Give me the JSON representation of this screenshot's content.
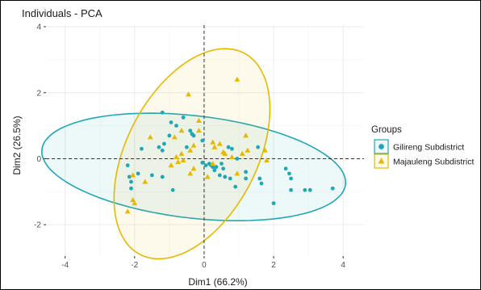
{
  "chart_data": {
    "type": "scatter",
    "title": "Individuals - PCA",
    "xlabel": "Dim1 (66.2%)",
    "ylabel": "Dim2 (26.5%)",
    "xlim": [
      -4.55,
      4.6
    ],
    "ylim": [
      -2.95,
      4.05
    ],
    "xticks": [
      -4,
      -2,
      0,
      2,
      4
    ],
    "yticks": [
      -2,
      0,
      2,
      4
    ],
    "grid": true,
    "reference_lines": {
      "x": 0,
      "y": 0
    },
    "legend_title": "Groups",
    "legend_position": "right",
    "series": [
      {
        "name": "Gilireng Subdistrict",
        "marker": "circle",
        "color": "#1fa7b8",
        "ellipse": {
          "cx": -0.3,
          "cy": -0.25,
          "rx": 4.4,
          "ry": 1.55,
          "angle_deg": -7
        },
        "points": [
          [
            -1.2,
            1.4
          ],
          [
            -0.95,
            1.1
          ],
          [
            -0.6,
            1.25
          ],
          [
            -0.4,
            0.85
          ],
          [
            -0.35,
            0.75
          ],
          [
            -0.3,
            0.7
          ],
          [
            -0.8,
            1.0
          ],
          [
            -1.0,
            0.7
          ],
          [
            -1.15,
            0.45
          ],
          [
            -1.8,
            0.3
          ],
          [
            -1.3,
            0.35
          ],
          [
            -1.2,
            0.25
          ],
          [
            -0.5,
            0.35
          ],
          [
            -0.05,
            0.55
          ],
          [
            0.7,
            0.35
          ],
          [
            0.8,
            0.3
          ],
          [
            1.55,
            0.35
          ],
          [
            0.95,
            0.0
          ],
          [
            -1.9,
            -0.45
          ],
          [
            -1.5,
            -0.5
          ],
          [
            -1.2,
            -0.55
          ],
          [
            -0.9,
            -0.95
          ],
          [
            -2.1,
            -0.9
          ],
          [
            -2.1,
            -0.7
          ],
          [
            -2.15,
            -0.55
          ],
          [
            -2.2,
            -0.2
          ],
          [
            0.05,
            -0.2
          ],
          [
            0.15,
            -0.15
          ],
          [
            0.2,
            -0.2
          ],
          [
            0.25,
            -0.25
          ],
          [
            0.35,
            -0.25
          ],
          [
            0.5,
            -0.15
          ],
          [
            0.55,
            -0.3
          ],
          [
            0.3,
            -0.35
          ],
          [
            0.45,
            -0.5
          ],
          [
            0.6,
            -0.55
          ],
          [
            0.75,
            -0.6
          ],
          [
            0.9,
            -0.85
          ],
          [
            1.2,
            -0.4
          ],
          [
            1.2,
            -0.6
          ],
          [
            1.6,
            -0.6
          ],
          [
            1.65,
            -0.75
          ],
          [
            2.35,
            -0.3
          ],
          [
            2.45,
            -0.45
          ],
          [
            2.5,
            -0.6
          ],
          [
            2.5,
            -0.95
          ],
          [
            2.9,
            -0.95
          ],
          [
            3.05,
            -0.95
          ],
          [
            3.7,
            -0.9
          ],
          [
            2.0,
            -1.35
          ],
          [
            -0.05,
            -0.12
          ]
        ]
      },
      {
        "name": "Majauleng Subdistrict",
        "marker": "triangle",
        "color": "#e7b800",
        "ellipse": {
          "cx": -0.35,
          "cy": 0.15,
          "rx": 1.9,
          "ry": 3.4,
          "angle_deg": -25
        },
        "points": [
          [
            0.95,
            2.4
          ],
          [
            -0.45,
            1.95
          ],
          [
            -0.15,
            1.15
          ],
          [
            -0.65,
            0.85
          ],
          [
            -1.55,
            0.65
          ],
          [
            -0.85,
            0.65
          ],
          [
            -0.15,
            0.85
          ],
          [
            0.25,
            0.5
          ],
          [
            0.45,
            0.45
          ],
          [
            1.2,
            0.7
          ],
          [
            -0.3,
            0.4
          ],
          [
            -0.65,
            0.15
          ],
          [
            -0.4,
            0.25
          ],
          [
            0.3,
            0.35
          ],
          [
            0.55,
            0.2
          ],
          [
            1.25,
            0.25
          ],
          [
            -0.8,
            0.05
          ],
          [
            -0.6,
            -0.05
          ],
          [
            -0.95,
            -0.2
          ],
          [
            -0.75,
            -0.1
          ],
          [
            0.6,
            0.15
          ],
          [
            0.8,
            0.05
          ],
          [
            1.1,
            0.15
          ],
          [
            1.75,
            0.25
          ],
          [
            1.8,
            -0.05
          ],
          [
            0.25,
            -0.15
          ],
          [
            -0.3,
            -0.3
          ],
          [
            -0.4,
            -0.45
          ],
          [
            0.95,
            -0.45
          ],
          [
            -1.7,
            -0.7
          ],
          [
            -2.05,
            -0.5
          ],
          [
            -2.05,
            -1.25
          ],
          [
            -2.0,
            -1.35
          ],
          [
            -2.2,
            -1.6
          ],
          [
            0.1,
            -0.55
          ]
        ]
      }
    ]
  }
}
